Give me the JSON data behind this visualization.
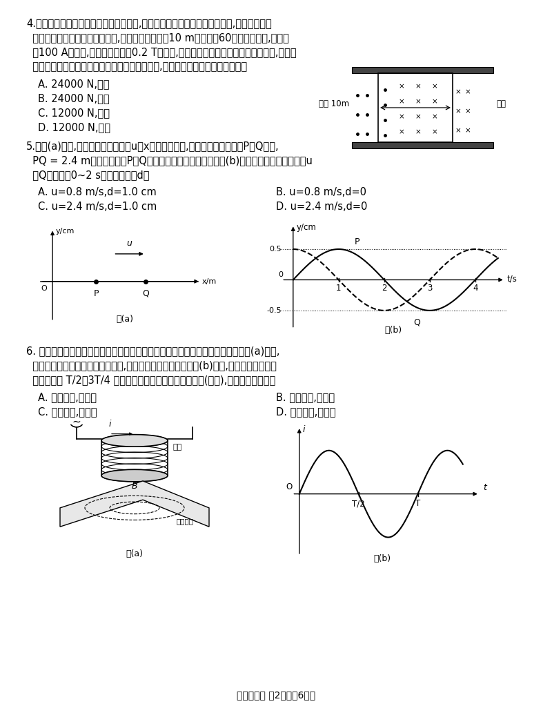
{
  "title": "物理试题卷 第2页（共6页）",
  "bg": "#ffffff",
  "q4_lines": [
    "4.为缩短固定翼飞行器着陆后的滑行距离,有人构想在机身和跑道上安装设备,使飞行器在安",
    "  培力作用下短距着陆。如图所示,在机身上安装长为10 m、匝数为60匝的矩形线圈,线圈通",
    "  以100 A的电流,跑道上有大小为0.2 T的磁场,通过传感器控制磁场区域随飞机移动,使矩形",
    "  线圈始终处于图示磁场中。忽略电磁感应的影响,线圈所受安培力的大小和方向是"
  ],
  "q4_choices": [
    "A. 24000 N,向左",
    "B. 24000 N,向右",
    "C. 12000 N,向左",
    "D. 12000 N,向右"
  ],
  "q5_lines": [
    "5.如图(a)所示,一列简谐横波以速度u沿x轴正方向传播,在波的传播方向上有P、Q两点,",
    "  PQ = 2.4 m且小于波长。P、Q两处质点的振动图像分别如图(b)中实线和虚线所示。波速u",
    "  和Q处质点在0~2 s内的位移大小d是"
  ],
  "q5_choicesL": [
    "A. u=0.8 m/s,d=1.0 cm",
    "C. u=2.4 m/s,d=1.0 cm"
  ],
  "q5_choicesR": [
    "B. u=0.8 m/s,d=0",
    "D. u=2.4 m/s,d=0"
  ],
  "q6_lines": [
    "6. 柔性可穿戴设备导电复合材料电阻率的测量需要使用一种非接触式传感器。如图(a)所示,",
    "  传感器探头线圈置于被测材料上方,给线圈通正弦交变电流如图(b)所示,电路中箭头为电流",
    "  正方向。在 T/2～3T/4 时间内关于涡旋电流的大小和方向(俯视),下列说法正确的是"
  ],
  "q6_choicesL": [
    "A. 不断增大,逆时针",
    "C. 不断减小,逆时针"
  ],
  "q6_choicesR": [
    "B. 不断增大,顺时针",
    "D. 不断减小,顺时针"
  ]
}
